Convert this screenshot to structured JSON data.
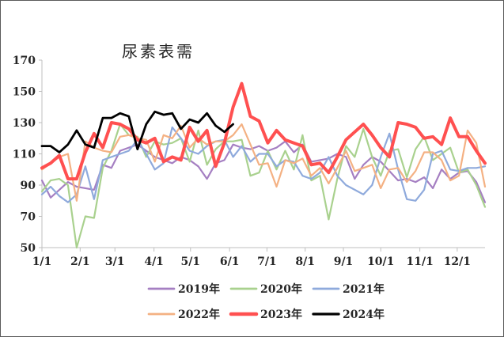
{
  "chart_data": {
    "type": "line",
    "title": "尿素表需",
    "xlabel": "",
    "ylabel": "",
    "ylim": [
      50,
      170
    ],
    "yticks": [
      50,
      70,
      90,
      110,
      130,
      150,
      170
    ],
    "grid": false,
    "legend_position": "bottom",
    "weeks_per_year": 52,
    "x_tick_labels": [
      {
        "label": "1/1",
        "week": 1
      },
      {
        "label": "2/1",
        "week": 5.4
      },
      {
        "label": "3/1",
        "week": 9.4
      },
      {
        "label": "4/1",
        "week": 13.9
      },
      {
        "label": "5/1",
        "week": 18.1
      },
      {
        "label": "6/1",
        "week": 22.6
      },
      {
        "label": "7/1",
        "week": 26.9
      },
      {
        "label": "8/1",
        "week": 31.3
      },
      {
        "label": "9/1",
        "week": 35.7
      },
      {
        "label": "10/1",
        "week": 40
      },
      {
        "label": "11/1",
        "week": 44.5
      },
      {
        "label": "12/1",
        "week": 48.8
      }
    ],
    "series": [
      {
        "name": "2019年",
        "color": "#a57fc2",
        "width": 2.2,
        "values": [
          93,
          82,
          87,
          92,
          89,
          88,
          87,
          103,
          101,
          112,
          114,
          116,
          112,
          108,
          106,
          104,
          108,
          106,
          102,
          94,
          104,
          106,
          116,
          114,
          113,
          115,
          112,
          114,
          118,
          111,
          116,
          105,
          106,
          107,
          110,
          108,
          94,
          103,
          108,
          105,
          99,
          93,
          94,
          92,
          95,
          88,
          100,
          94,
          98,
          99,
          92,
          79
        ]
      },
      {
        "name": "2020年",
        "color": "#a9d18e",
        "width": 2.2,
        "values": [
          86,
          93,
          94,
          90,
          50,
          70,
          69,
          101,
          112,
          129,
          122,
          121,
          108,
          118,
          116,
          117,
          120,
          105,
          125,
          103,
          113,
          118,
          118,
          119,
          96,
          98,
          112,
          100,
          112,
          100,
          122,
          93,
          96,
          68,
          94,
          115,
          108,
          126,
          108,
          96,
          112,
          113,
          95,
          113,
          121,
          106,
          110,
          114,
          98,
          100,
          90,
          76
        ]
      },
      {
        "name": "2021年",
        "color": "#8faadc",
        "width": 2.2,
        "values": [
          84,
          89,
          83,
          79,
          84,
          102,
          81,
          106,
          108,
          110,
          112,
          119,
          110,
          100,
          104,
          127,
          120,
          112,
          110,
          115,
          118,
          119,
          108,
          115,
          105,
          110,
          110,
          102,
          106,
          105,
          96,
          94,
          98,
          108,
          96,
          90,
          87,
          84,
          90,
          108,
          123,
          100,
          81,
          80,
          87,
          110,
          112,
          100,
          99,
          101,
          101,
          102
        ]
      },
      {
        "name": "2022年",
        "color": "#f4b183",
        "width": 2.2,
        "values": [
          100,
          104,
          108,
          110,
          80,
          118,
          114,
          112,
          111,
          121,
          122,
          120,
          119,
          105,
          122,
          120,
          128,
          114,
          120,
          116,
          118,
          118,
          122,
          129,
          116,
          103,
          104,
          89,
          106,
          104,
          107,
          96,
          101,
          91,
          101,
          112,
          99,
          101,
          103,
          88,
          100,
          101,
          92,
          99,
          111,
          111,
          106,
          93,
          96,
          125,
          117,
          89
        ]
      },
      {
        "name": "2023年",
        "color": "#ff5050",
        "width": 4,
        "values": [
          101,
          104,
          109,
          94,
          94,
          111,
          123,
          114,
          130,
          129,
          126,
          119,
          117,
          120,
          105,
          108,
          106,
          127,
          118,
          125,
          102,
          117,
          140,
          155,
          134,
          131,
          117,
          125,
          119,
          117,
          115,
          103,
          104,
          98,
          108,
          119,
          124,
          129,
          122,
          114,
          108,
          130,
          129,
          127,
          120,
          121,
          116,
          133,
          121,
          121,
          112,
          104
        ]
      },
      {
        "name": "2024年",
        "color": "#000000",
        "width": 2.8,
        "values": [
          115,
          115,
          111,
          116,
          125,
          116,
          114,
          133,
          133,
          136,
          134,
          113,
          129,
          137,
          135,
          136,
          126,
          132,
          130,
          136,
          128,
          124,
          129
        ]
      }
    ]
  }
}
